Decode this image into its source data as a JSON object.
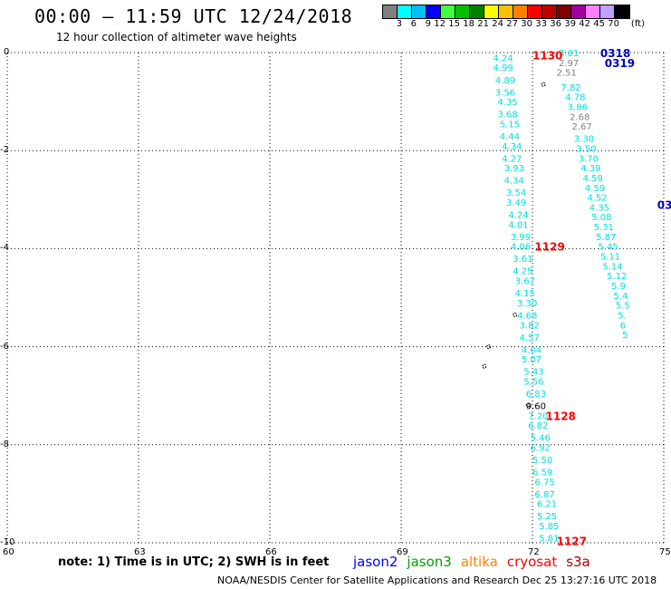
{
  "title": "00:00 — 11:59 UTC 12/24/2018",
  "subtitle": "12 hour collection of altimeter wave heights",
  "legend": {
    "unit": "(ft)",
    "bins": [
      {
        "label": "3",
        "color": "#808080"
      },
      {
        "label": "6",
        "color": "#00ffff"
      },
      {
        "label": "9",
        "color": "#00bfff"
      },
      {
        "label": "12",
        "color": "#0000ff"
      },
      {
        "label": "15",
        "color": "#40ff40"
      },
      {
        "label": "18",
        "color": "#00c000"
      },
      {
        "label": "21",
        "color": "#008000"
      },
      {
        "label": "24",
        "color": "#ffff00"
      },
      {
        "label": "27",
        "color": "#ffc000"
      },
      {
        "label": "30",
        "color": "#ff8000"
      },
      {
        "label": "33",
        "color": "#ff0000"
      },
      {
        "label": "36",
        "color": "#c00000"
      },
      {
        "label": "39",
        "color": "#800000"
      },
      {
        "label": "42",
        "color": "#a000a0"
      },
      {
        "label": "45",
        "color": "#ff80ff"
      },
      {
        "label": "70",
        "color": "#c0a0ff"
      },
      {
        "label": "",
        "color": "#000000"
      }
    ]
  },
  "axes": {
    "x_ticks": [
      "60",
      "63",
      "66",
      "69",
      "72",
      "75"
    ],
    "y_ticks": [
      "0",
      "-2",
      "-4",
      "-6",
      "-8",
      "-10"
    ],
    "lon_range": [
      60,
      75
    ],
    "lat_range": [
      -10,
      0
    ]
  },
  "passes": [
    {
      "time_label": "1130",
      "label_color": "#ff0000",
      "color": "#00e0e0",
      "points": [
        {
          "lon": 71.1,
          "lat": -0.1,
          "v": "4.24"
        },
        {
          "lon": 71.1,
          "lat": -0.3,
          "v": "4.99"
        },
        {
          "lon": 71.15,
          "lat": -0.55,
          "v": "4.89"
        },
        {
          "lon": 71.15,
          "lat": -0.8,
          "v": "3.56"
        },
        {
          "lon": 71.2,
          "lat": -1.0,
          "v": "4.35"
        },
        {
          "lon": 71.2,
          "lat": -1.25,
          "v": "3.68"
        },
        {
          "lon": 71.25,
          "lat": -1.45,
          "v": "5.15"
        },
        {
          "lon": 71.25,
          "lat": -1.7,
          "v": "4.44"
        },
        {
          "lon": 71.3,
          "lat": -1.9,
          "v": "4.34"
        },
        {
          "lon": 71.3,
          "lat": -2.15,
          "v": "4.27"
        },
        {
          "lon": 71.35,
          "lat": -2.35,
          "v": "3.93"
        },
        {
          "lon": 71.35,
          "lat": -2.6,
          "v": "4.34"
        },
        {
          "lon": 71.4,
          "lat": -2.85,
          "v": "3.54"
        },
        {
          "lon": 71.4,
          "lat": -3.05,
          "v": "3.49"
        },
        {
          "lon": 71.45,
          "lat": -3.3,
          "v": "4.24"
        },
        {
          "lon": 71.45,
          "lat": -3.5,
          "v": "4.01"
        },
        {
          "lon": 71.5,
          "lat": -3.75,
          "v": "3.99"
        },
        {
          "lon": 71.5,
          "lat": -3.95,
          "v": "4.06"
        },
        {
          "lon": 71.55,
          "lat": -4.2,
          "v": "3.61"
        },
        {
          "lon": 71.55,
          "lat": -4.45,
          "v": "4.25"
        },
        {
          "lon": 71.6,
          "lat": -4.65,
          "v": "3.67"
        },
        {
          "lon": 71.6,
          "lat": -4.9,
          "v": "4.15"
        },
        {
          "lon": 71.65,
          "lat": -5.1,
          "v": "3.30"
        },
        {
          "lon": 71.65,
          "lat": -5.35,
          "v": "4.68"
        },
        {
          "lon": 71.7,
          "lat": -5.55,
          "v": "3.82"
        },
        {
          "lon": 71.7,
          "lat": -5.8,
          "v": "4.57"
        },
        {
          "lon": 71.75,
          "lat": -6.05,
          "v": "4.04"
        },
        {
          "lon": 71.75,
          "lat": -6.25,
          "v": "5.07"
        },
        {
          "lon": 71.8,
          "lat": -6.5,
          "v": "5.43"
        },
        {
          "lon": 71.8,
          "lat": -6.7,
          "v": "5.56"
        },
        {
          "lon": 71.85,
          "lat": -6.95,
          "v": "6.83"
        }
      ]
    },
    {
      "time_label": "1128",
      "label_color": "#ff0000",
      "color": "#00e0e0",
      "points": [
        {
          "lon": 71.85,
          "lat": -7.2,
          "v": "9.60",
          "color": "#000000"
        },
        {
          "lon": 71.9,
          "lat": -7.4,
          "v": "7.20"
        },
        {
          "lon": 71.9,
          "lat": -7.6,
          "v": "6.82"
        },
        {
          "lon": 71.95,
          "lat": -7.85,
          "v": "5.46"
        },
        {
          "lon": 71.95,
          "lat": -8.05,
          "v": "6.92"
        },
        {
          "lon": 72.0,
          "lat": -8.3,
          "v": "5.50"
        },
        {
          "lon": 72.0,
          "lat": -8.55,
          "v": "6.59"
        },
        {
          "lon": 72.05,
          "lat": -8.75,
          "v": "6.75"
        },
        {
          "lon": 72.05,
          "lat": -9.0,
          "v": "6.87"
        },
        {
          "lon": 72.1,
          "lat": -9.2,
          "v": "6.21"
        },
        {
          "lon": 72.1,
          "lat": -9.45,
          "v": "5.25"
        },
        {
          "lon": 72.15,
          "lat": -9.65,
          "v": "5.85"
        },
        {
          "lon": 72.15,
          "lat": -9.9,
          "v": "5.81"
        }
      ]
    },
    {
      "time_label": "1129",
      "label_color": "#ff0000",
      "color": "#00e0e0",
      "points": []
    },
    {
      "time_label": "1127",
      "label_color": "#ff0000",
      "color": "#00e0e0",
      "points": []
    },
    {
      "time_label": "0318",
      "label_color": "#0000c0",
      "color": "#00e0e0",
      "points": [
        {
          "lon": 72.6,
          "lat": 0.0,
          "v": "3.61"
        },
        {
          "lon": 72.6,
          "lat": -0.2,
          "v": "2.97",
          "color": "#808080"
        },
        {
          "lon": 72.55,
          "lat": -0.4,
          "v": "2.51",
          "color": "#808080"
        },
        {
          "lon": 72.65,
          "lat": -0.7,
          "v": "7.82"
        },
        {
          "lon": 72.75,
          "lat": -0.9,
          "v": "4.78"
        },
        {
          "lon": 72.8,
          "lat": -1.1,
          "v": "3.86"
        },
        {
          "lon": 72.85,
          "lat": -1.3,
          "v": "2.68",
          "color": "#808080"
        },
        {
          "lon": 72.9,
          "lat": -1.5,
          "v": "2.67",
          "color": "#808080"
        },
        {
          "lon": 72.95,
          "lat": -1.75,
          "v": "3.30"
        },
        {
          "lon": 73.0,
          "lat": -1.95,
          "v": "3.50"
        },
        {
          "lon": 73.05,
          "lat": -2.15,
          "v": "3.70"
        },
        {
          "lon": 73.1,
          "lat": -2.35,
          "v": "4.39"
        },
        {
          "lon": 73.15,
          "lat": -2.55,
          "v": "4.59"
        },
        {
          "lon": 73.2,
          "lat": -2.75,
          "v": "4.59"
        },
        {
          "lon": 73.25,
          "lat": -2.95,
          "v": "4.52"
        },
        {
          "lon": 73.3,
          "lat": -3.15,
          "v": "4.35"
        },
        {
          "lon": 73.35,
          "lat": -3.35,
          "v": "5.08"
        },
        {
          "lon": 73.4,
          "lat": -3.55,
          "v": "5.31"
        },
        {
          "lon": 73.45,
          "lat": -3.75,
          "v": "5.87"
        },
        {
          "lon": 73.5,
          "lat": -3.95,
          "v": "5.45"
        },
        {
          "lon": 73.55,
          "lat": -4.15,
          "v": "5.11"
        },
        {
          "lon": 73.6,
          "lat": -4.35,
          "v": "5.14"
        },
        {
          "lon": 73.7,
          "lat": -4.55,
          "v": "5.12"
        },
        {
          "lon": 73.8,
          "lat": -4.75,
          "v": "5.9"
        },
        {
          "lon": 73.85,
          "lat": -4.95,
          "v": "5.4"
        },
        {
          "lon": 73.9,
          "lat": -5.15,
          "v": "5.5"
        },
        {
          "lon": 73.95,
          "lat": -5.35,
          "v": "5."
        },
        {
          "lon": 74.0,
          "lat": -5.55,
          "v": "6"
        },
        {
          "lon": 74.05,
          "lat": -5.75,
          "v": "5"
        }
      ]
    },
    {
      "time_label": "0319",
      "label_color": "#0000c0",
      "color": "#00e0e0",
      "points": []
    },
    {
      "time_label": "03",
      "label_color": "#0000c0",
      "color": "#00e0e0",
      "points": []
    }
  ],
  "sensors": [
    {
      "name": "jason2",
      "color": "#0000ff"
    },
    {
      "name": "jason3",
      "color": "#00a000"
    },
    {
      "name": "altika",
      "color": "#ff8000"
    },
    {
      "name": "cryosat",
      "color": "#ff0000"
    },
    {
      "name": "s3a",
      "color": "#a00000"
    }
  ],
  "note": "note: 1) Time is in UTC; 2) SWH is in feet",
  "footer": "NOAA/NESDIS Center for Satellite Applications and Research    Dec 25 13:27:16 UTC 2018"
}
